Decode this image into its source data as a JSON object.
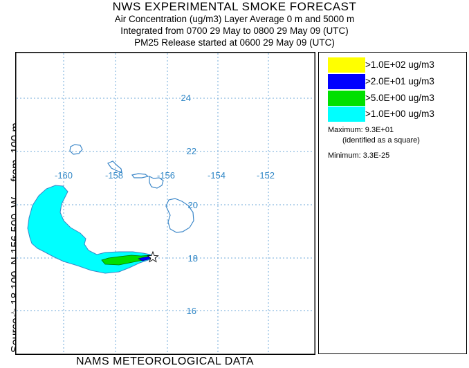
{
  "header": {
    "title": "NWS EXPERIMENTAL SMOKE FORECAST",
    "line1": "Air Concentration (ug/m3) Layer Average    0 m and  5000 m",
    "line2": "Integrated from 0700 29 May to 0800 29 May 09 (UTC)",
    "line3": "PM25 Release started at 0600 29 May 09 (UTC)"
  },
  "side_label": "Source☆ 18.100  N 156.500  W     from  100 m",
  "footer": "NAMS METEOROLOGICAL DATA",
  "map": {
    "lon_labels": [
      "-160",
      "-158",
      "-156",
      "-154",
      "-152"
    ],
    "lat_labels": [
      "24",
      "22",
      "20",
      "18",
      "16"
    ],
    "gridline_color": "#6fa8d8",
    "coast_color": "#3a86c8",
    "source_marker": "star-icon"
  },
  "legend": {
    "items": [
      {
        "label": ">1.0E+02 ug/m3",
        "color": "#ffff00"
      },
      {
        "label": ">2.0E+01 ug/m3",
        "color": "#0000ff"
      },
      {
        "label": ">5.0E+00 ug/m3",
        "color": "#00e000"
      },
      {
        "label": ">1.0E+00 ug/m3",
        "color": "#00ffff"
      }
    ],
    "maximum_label": "Maximum: 9.3E+01",
    "maximum_note": "(identified as a square)",
    "minimum_label": "Minimum: 3.3E-25"
  }
}
